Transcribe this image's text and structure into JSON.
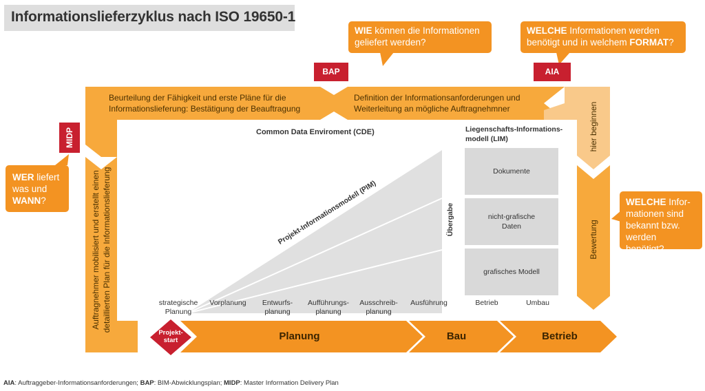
{
  "title": "Informationslieferzyklus nach ISO 19650-1",
  "callouts": {
    "wie": {
      "bold": "WIE",
      "rest_line1": " können die Informationen",
      "line2": "geliefert werden?"
    },
    "welche_top": {
      "bold1": "WELCHE",
      "rest1": " Informationen werden",
      "line2a": "benötigt und in welchem ",
      "bold2": "FORMAT",
      "rest2": "?"
    },
    "wer": {
      "bold1": "WER",
      "rest1": " liefert",
      "line2": "was und",
      "bold2": "WANN",
      "rest2": "?"
    },
    "welche_right": {
      "bold1": "WELCHE",
      "rest1": " Infor-",
      "line2": "mationen sind",
      "line3": "bekannt bzw.",
      "line4": "werden benötigt?"
    }
  },
  "tags": {
    "bap": "BAP",
    "aia": "AIA",
    "midp": "MIDP"
  },
  "band_top": {
    "left_line1": "Beurteilung der Fähigkeit und erste Pläne für die",
    "left_line2": "Informationslieferung: Bestätigung der Beauftragung",
    "right_line1": "Definition der Informationsanforderungen und",
    "right_line2": "Weiterleitung an mögliche Auftragnehmner"
  },
  "band_left_text_line1": "Auftragnehmer mobilisiert und erstellt einen",
  "band_left_text_line2": "detaillierten Plan für die Informationslieferung",
  "band_right": {
    "hier": "hier beginnen",
    "bewertung": "Bewertung"
  },
  "cde_title": "Common Data Enviroment (CDE)",
  "pim_label": "Projekt-Informationsmodell (PIM)",
  "uebergabe": "Übergabe",
  "lim": {
    "title_line1": "Liegenschafts-Informations-",
    "title_line2": "modell (LIM)",
    "boxes": [
      {
        "line1": "Dokumente",
        "line2": ""
      },
      {
        "line1": "nicht-grafische",
        "line2": "Daten"
      },
      {
        "line1": "grafisches Modell",
        "line2": ""
      }
    ]
  },
  "phases": [
    {
      "line1": "strategische",
      "line2": "Planung"
    },
    {
      "line1": "Vorplanung",
      "line2": ""
    },
    {
      "line1": "Entwurfs-",
      "line2": "planung"
    },
    {
      "line1": "Aufführungs-",
      "line2": "planung"
    },
    {
      "line1": "Ausschreib-",
      "line2": "planung"
    },
    {
      "line1": "Ausführung",
      "line2": ""
    },
    {
      "line1": "Betrieb",
      "line2": ""
    },
    {
      "line1": "Umbau",
      "line2": ""
    }
  ],
  "projektstart": {
    "line1": "Projekt-",
    "line2": "start"
  },
  "bottom_arrows": {
    "planung": "Planung",
    "bau": "Bau",
    "betrieb": "Betrieb"
  },
  "footer": {
    "aia_key": "AIA",
    "aia_text": ": Auftraggeber-Informationsanforderungen; ",
    "bap_key": "BAP",
    "bap_text": ": BIM-Abwicklungsplan; ",
    "midp_key": "MIDP",
    "midp_text": ": Master Information Delivery Plan"
  },
  "colors": {
    "orange": "#f39322",
    "orange_light": "#f7b25a",
    "orange_pale": "#f9c98a",
    "red": "#c8202f",
    "grey": "#d9d9d9"
  }
}
